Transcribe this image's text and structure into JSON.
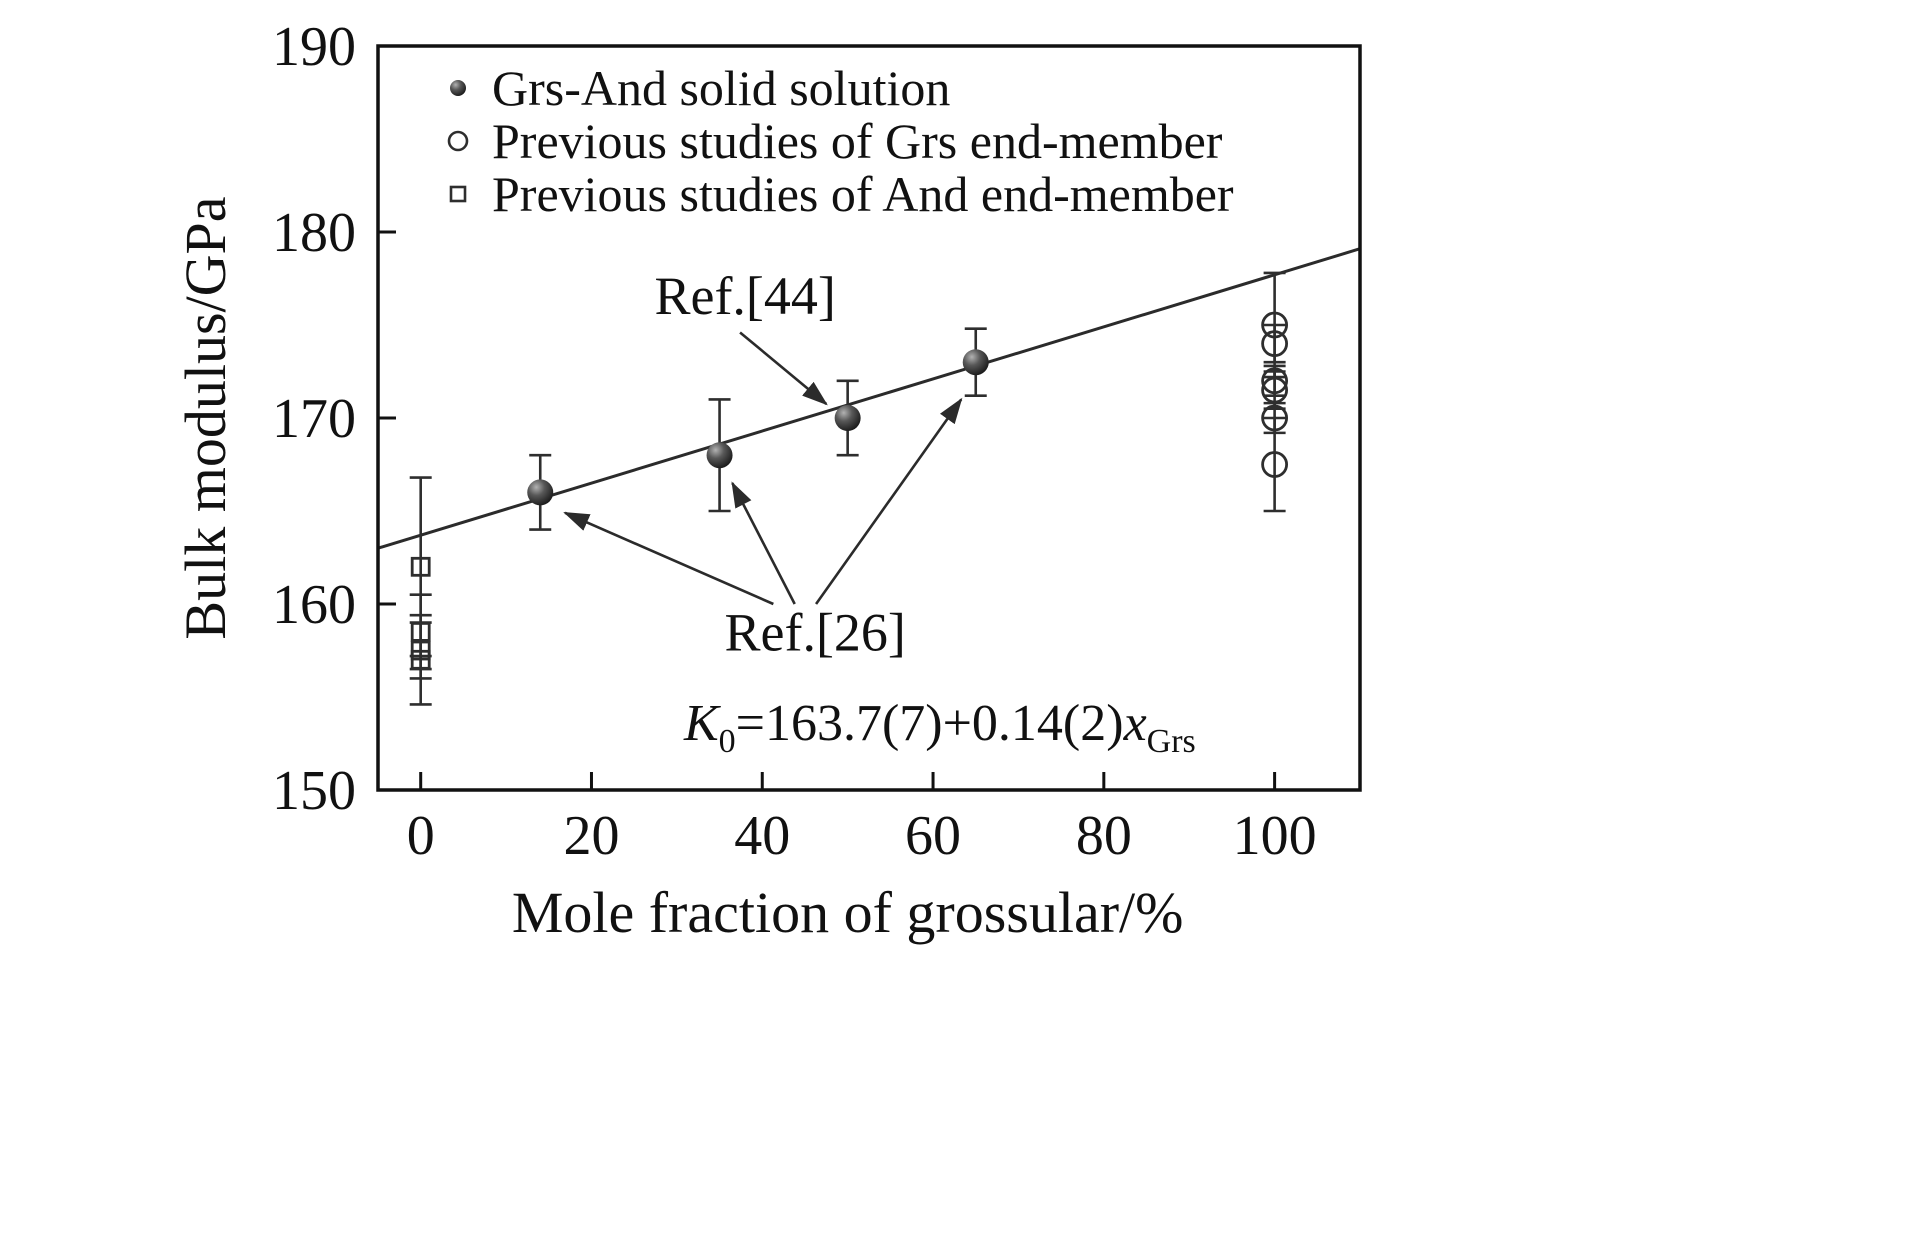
{
  "colors": {
    "ink": "#111111",
    "line": "#2b2b2b",
    "marker_stroke": "#2e2e2e",
    "background": "#ffffff"
  },
  "chart_data": {
    "type": "scatter",
    "title": "",
    "xlabel": "Mole fraction of grossular/%",
    "ylabel": "Bulk modulus/GPa",
    "xlim": [
      -5,
      110
    ],
    "ylim": [
      150,
      190
    ],
    "xticks": [
      0,
      20,
      40,
      60,
      80,
      100
    ],
    "yticks": [
      150,
      160,
      170,
      180,
      190
    ],
    "grid": false,
    "legend_position": "top-left-inside",
    "series": [
      {
        "name": "Grs-And solid solution",
        "marker": "sphere",
        "points": [
          {
            "x": 14,
            "y": 166,
            "err": 2
          },
          {
            "x": 35,
            "y": 168,
            "err": 3
          },
          {
            "x": 50,
            "y": 170,
            "err": 2
          },
          {
            "x": 65,
            "y": 173,
            "err": 1.8
          }
        ]
      },
      {
        "name": "Previous studies of Grs end-member",
        "marker": "open-circle",
        "points": [
          {
            "x": 100,
            "y": 175,
            "err": 2.8
          },
          {
            "x": 100,
            "y": 174,
            "err": 1
          },
          {
            "x": 100,
            "y": 172,
            "err": 0.8
          },
          {
            "x": 100,
            "y": 171.5,
            "err": 1
          },
          {
            "x": 100,
            "y": 170,
            "err": 0.8
          },
          {
            "x": 100,
            "y": 167.5,
            "err": 2.5
          }
        ]
      },
      {
        "name": "Previous studies of And end-member",
        "marker": "open-square",
        "points": [
          {
            "x": 0,
            "y": 162,
            "err": 4.8
          },
          {
            "x": 0,
            "y": 158.5,
            "err": 2
          },
          {
            "x": 0,
            "y": 157.5,
            "err": 1.5
          },
          {
            "x": 0,
            "y": 157,
            "err": 2.4
          }
        ]
      }
    ],
    "fit_line": {
      "intercept": 163.7,
      "slope": 0.14
    },
    "equation": {
      "var": "K",
      "var_sub": "0",
      "body": "=163.7(7)+0.14(2)",
      "x_var": "x",
      "x_sub": "Grs",
      "at": [
        60.8,
        152.7
      ]
    },
    "annotations": [
      {
        "text": "Ref.[44]",
        "at": [
          38,
          175.6
        ],
        "arrows": [
          {
            "from": [
              37.4,
              174.6
            ],
            "to": [
              47.5,
              170.75
            ]
          }
        ]
      },
      {
        "text": "Ref.[26]",
        "at": [
          46.2,
          157.5
        ],
        "arrows": [
          {
            "from": [
              41.3,
              160.0
            ],
            "to": [
              16.9,
              164.9
            ]
          },
          {
            "from": [
              43.8,
              160.0
            ],
            "to": [
              36.5,
              166.5
            ]
          },
          {
            "from": [
              46.3,
              160.0
            ],
            "to": [
              63.3,
              171.0
            ]
          }
        ]
      }
    ]
  }
}
